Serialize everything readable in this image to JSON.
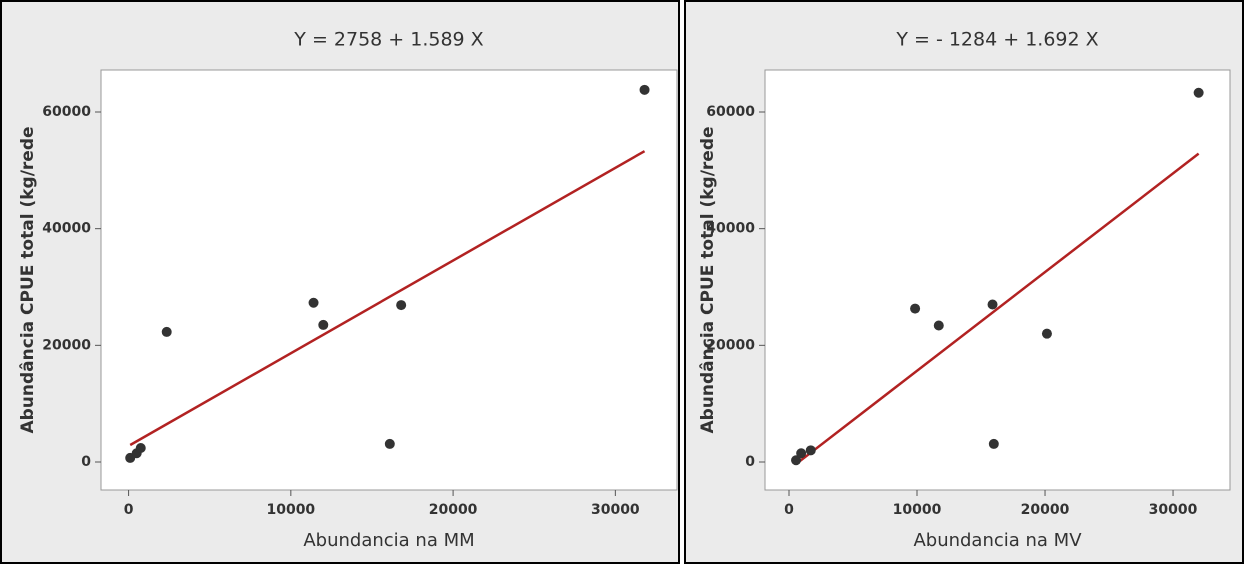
{
  "chart_data": [
    {
      "type": "scatter",
      "subtitle": "Y = 2758 + 1.589 X",
      "x_label": "Abundancia na MM",
      "y_label": "Abundância CPUE  total (kg/rede",
      "x": [
        100,
        500,
        750,
        2350,
        11400,
        12000,
        16100,
        16800,
        31800
      ],
      "values": [
        700,
        1500,
        2400,
        22300,
        27300,
        23500,
        3100,
        26900,
        63800
      ],
      "color": "#333333",
      "fit": {
        "intercept": 2758,
        "slope": 1.589,
        "color": "#b22222"
      },
      "xlim": [
        -1700,
        33800
      ],
      "ylim": [
        -4800,
        67200
      ],
      "xticks": [
        0,
        10000,
        20000,
        30000
      ],
      "yticks": [
        0,
        20000,
        40000,
        60000
      ]
    },
    {
      "type": "scatter",
      "subtitle": "Y = - 1284 + 1.692 X",
      "x_label": "Abundancia na MV",
      "y_label": "Abundância CPUE  total (kg/rede",
      "x": [
        550,
        950,
        1700,
        9850,
        11700,
        15900,
        16000,
        20150,
        32000
      ],
      "values": [
        300,
        1500,
        2000,
        26300,
        23400,
        27000,
        3100,
        22000,
        63300
      ],
      "color": "#333333",
      "fit": {
        "intercept": -1284,
        "slope": 1.692,
        "color": "#b22222"
      },
      "xlim": [
        -1875,
        34450
      ],
      "ylim": [
        -4800,
        67200
      ],
      "xticks": [
        0,
        10000,
        20000,
        30000
      ],
      "yticks": [
        0,
        20000,
        40000,
        60000
      ]
    }
  ]
}
